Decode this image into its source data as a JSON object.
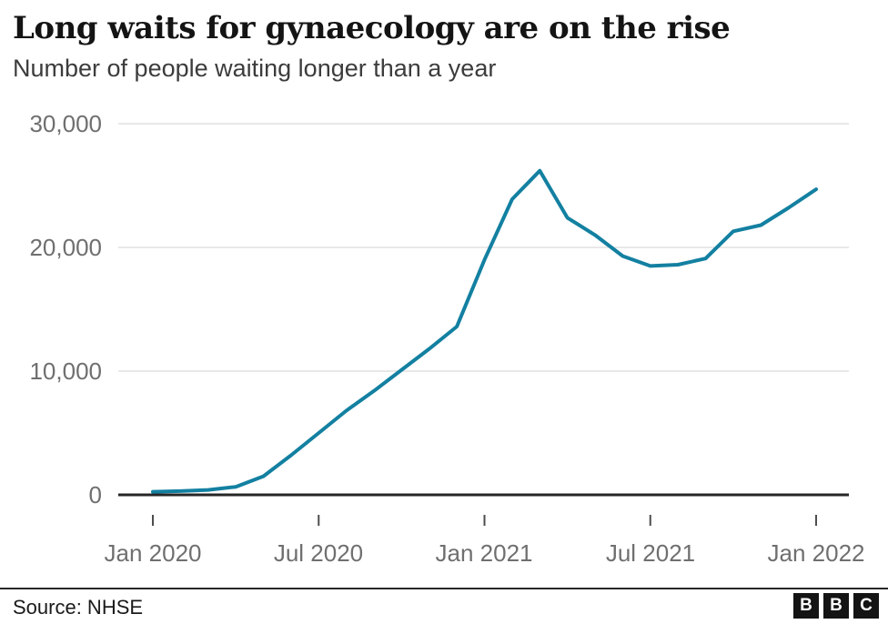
{
  "header": {
    "title": "Long waits for gynaecology are on the rise",
    "subtitle": "Number of people waiting longer than a year"
  },
  "chart_data": {
    "type": "line",
    "title": "Long waits for gynaecology are on the rise",
    "subtitle": "Number of people waiting longer than a year",
    "x": [
      "Jan 2020",
      "Feb 2020",
      "Mar 2020",
      "Apr 2020",
      "May 2020",
      "Jun 2020",
      "Jul 2020",
      "Aug 2020",
      "Sep 2020",
      "Oct 2020",
      "Nov 2020",
      "Dec 2020",
      "Jan 2021",
      "Feb 2021",
      "Mar 2021",
      "Apr 2021",
      "May 2021",
      "Jun 2021",
      "Jul 2021",
      "Aug 2021",
      "Sep 2021",
      "Oct 2021",
      "Nov 2021",
      "Dec 2021",
      "Jan 2022"
    ],
    "series": [
      {
        "name": "People waiting longer than a year",
        "color": "#1380A1",
        "values": [
          250,
          300,
          400,
          650,
          1500,
          3200,
          5000,
          6800,
          8400,
          10100,
          11800,
          13600,
          19000,
          23900,
          26200,
          22400,
          21000,
          19300,
          18500,
          18600,
          19100,
          21300,
          21800,
          23200,
          24700
        ]
      }
    ],
    "ylim": [
      0,
      30000
    ],
    "y_ticks": [
      30000,
      20000,
      10000,
      0
    ],
    "y_tick_labels": [
      "30,000",
      "20,000",
      "10,000",
      "0"
    ],
    "x_tick_labels": [
      "Jan 2020",
      "Jul 2020",
      "Jan 2021",
      "Jul 2021",
      "Jan 2022"
    ],
    "grid": "horizontal",
    "legend": "none"
  },
  "footer": {
    "source": "Source: NHSE",
    "logo_letters": [
      "B",
      "B",
      "C"
    ]
  }
}
